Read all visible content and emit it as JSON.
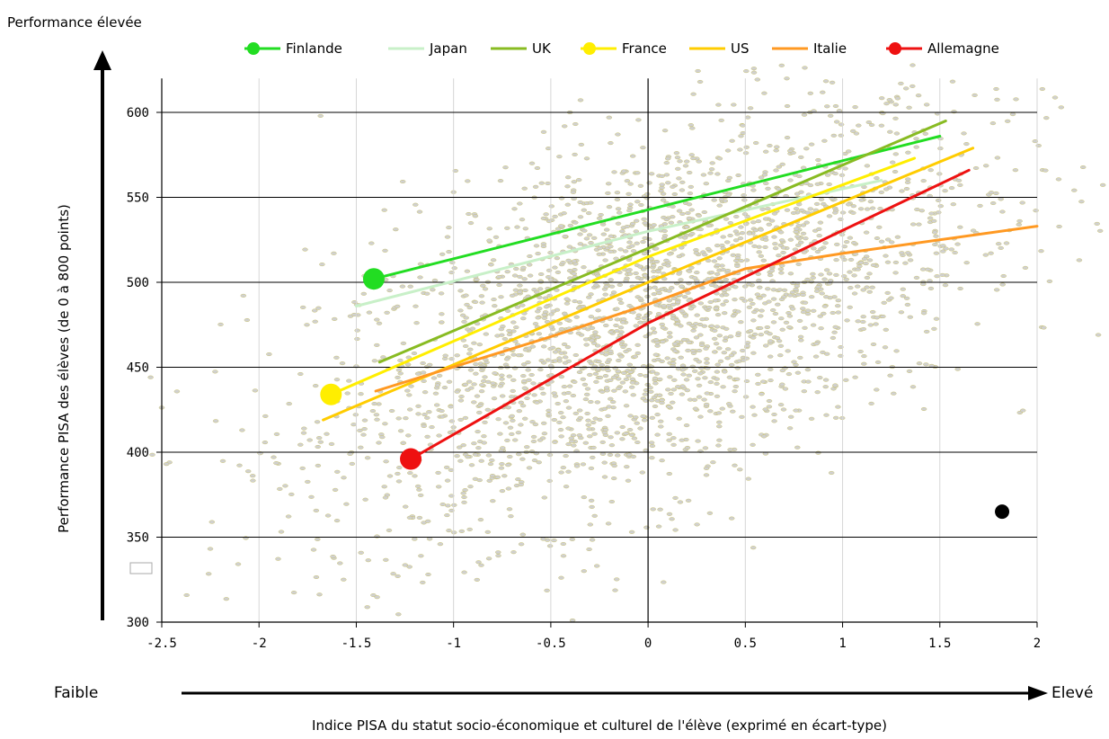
{
  "chart_data": {
    "type": "line",
    "title": "",
    "top_left_label": "Performance élevée",
    "ylabel": "Performance  PISA des élèves (de 0 à 800 points)",
    "xlabel": "Indice PISA du statut socio-économique et culturel de l'élève (exprimé en écart-type)",
    "x_low_label": "Faible",
    "x_high_label": "Elevé",
    "xlim": [
      -2.5,
      2
    ],
    "ylim": [
      300,
      620
    ],
    "x_ticks": [
      -2.5,
      -2,
      -1.5,
      -1,
      -0.5,
      0,
      0.5,
      1,
      1.5,
      2
    ],
    "x_tick_labels": [
      "-2.5",
      "-2",
      "-1.5",
      "-1",
      "-0.5",
      "0",
      "0.5",
      "1",
      "1.5",
      "2"
    ],
    "y_ticks": [
      300,
      350,
      400,
      450,
      500,
      550,
      600
    ],
    "y_tick_labels": [
      "300",
      "350",
      "400",
      "450",
      "500",
      "550",
      "600"
    ],
    "grid": true,
    "legend_position": "top",
    "background_scatter": "dense cloud of individual student scores (grey), roughly centred at (0, 480)",
    "series": [
      {
        "name": "Finlande",
        "color": "#22dd22",
        "marker": true,
        "points": [
          [
            -1.41,
            502
          ],
          [
            1.5,
            586
          ]
        ]
      },
      {
        "name": "Japan",
        "color": "#c8f0c8",
        "marker": false,
        "points": [
          [
            -1.5,
            486
          ],
          [
            0,
            530
          ],
          [
            1.2,
            560
          ]
        ]
      },
      {
        "name": "UK",
        "color": "#88bb22",
        "marker": false,
        "points": [
          [
            -1.38,
            453
          ],
          [
            0,
            520
          ],
          [
            1.53,
            595
          ]
        ]
      },
      {
        "name": "France",
        "color": "#ffee00",
        "marker": true,
        "points": [
          [
            -1.63,
            434
          ],
          [
            0,
            515
          ],
          [
            1.37,
            573
          ]
        ]
      },
      {
        "name": "US",
        "color": "#ffcc00",
        "marker": false,
        "points": [
          [
            -1.67,
            419
          ],
          [
            0,
            500
          ],
          [
            1.67,
            579
          ]
        ]
      },
      {
        "name": "Italie",
        "color": "#ff9922",
        "marker": false,
        "points": [
          [
            -1.4,
            436
          ],
          [
            -0.5,
            468
          ],
          [
            0,
            487
          ],
          [
            0.5,
            508
          ],
          [
            1,
            517
          ],
          [
            2,
            533
          ]
        ]
      },
      {
        "name": "Allemagne",
        "color": "#ee1111",
        "marker": true,
        "points": [
          [
            -1.22,
            396
          ],
          [
            0,
            476
          ],
          [
            1.65,
            566
          ]
        ]
      }
    ],
    "annotations": [
      {
        "type": "marker",
        "color": "#000000",
        "x": 1.82,
        "y": 365
      }
    ]
  }
}
